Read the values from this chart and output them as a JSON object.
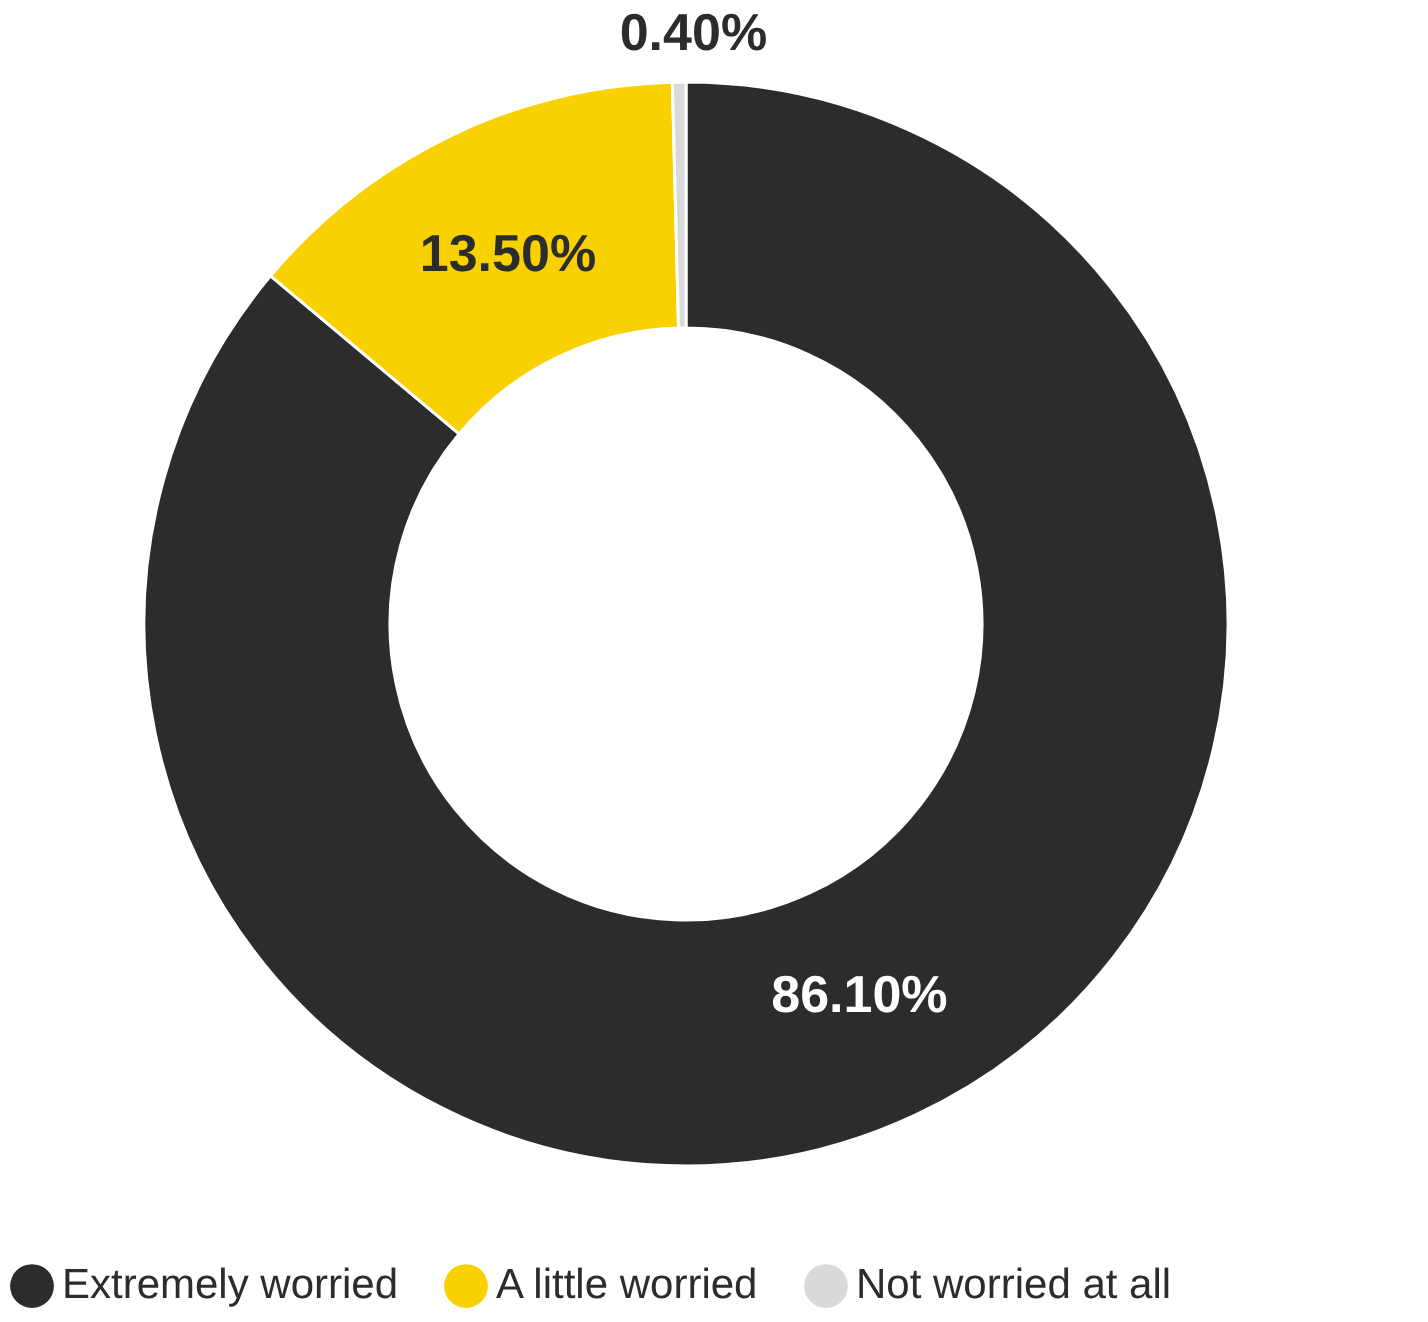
{
  "chart_data": {
    "type": "donut",
    "categories": [
      "Extremely worried",
      "A little worried",
      "Not worried at all"
    ],
    "values": [
      86.1,
      13.5,
      0.4
    ],
    "colors": [
      "#2b2d2c",
      "#f9d000",
      "#d9d9d9"
    ],
    "value_labels": [
      "86.10%",
      "13.50%",
      "0.40%"
    ],
    "legend": "bottom"
  }
}
